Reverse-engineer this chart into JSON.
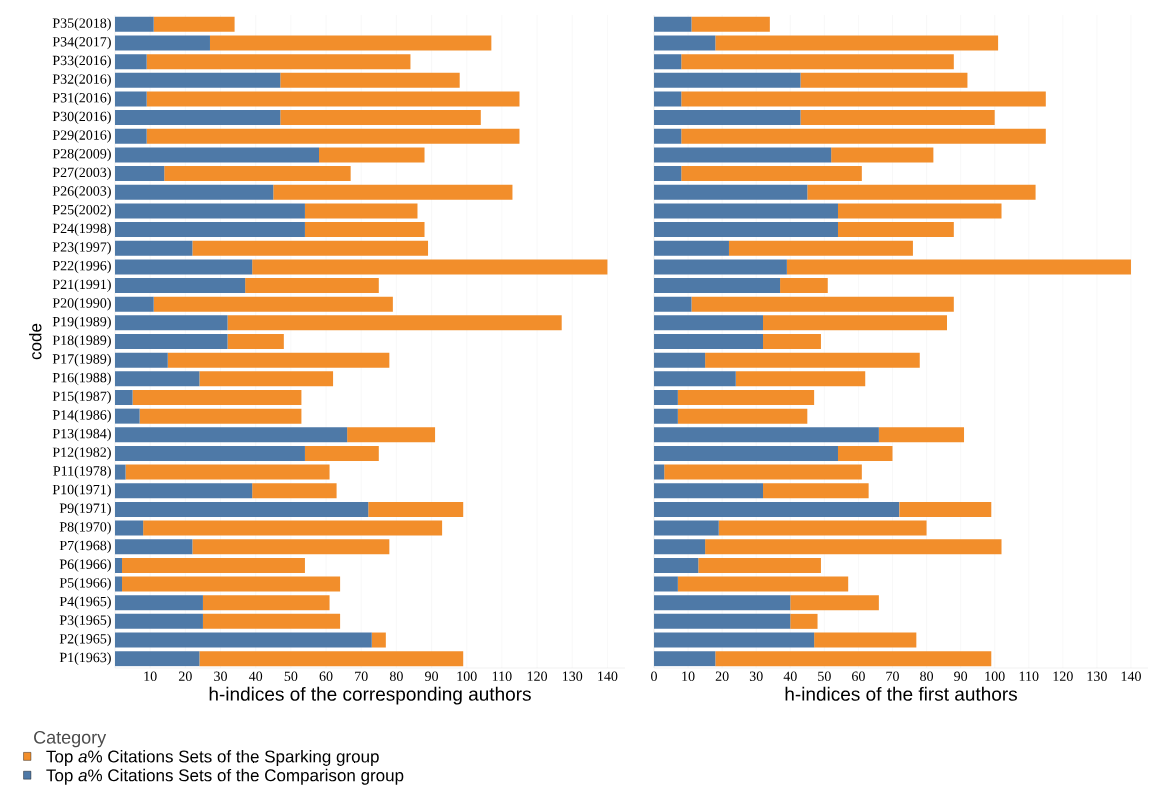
{
  "chart_data": [
    {
      "type": "bar",
      "orientation": "horizontal",
      "stacked": true,
      "categories": [
        "P35(2018)",
        "P34(2017)",
        "P33(2016)",
        "P32(2016)",
        "P31(2016)",
        "P30(2016)",
        "P29(2016)",
        "P28(2009)",
        "P27(2003)",
        "P26(2003)",
        "P25(2002)",
        "P24(1998)",
        "P23(1997)",
        "P22(1996)",
        "P21(1991)",
        "P20(1990)",
        "P19(1989)",
        "P18(1989)",
        "P17(1989)",
        "P16(1988)",
        "P15(1987)",
        "P14(1986)",
        "P13(1984)",
        "P12(1982)",
        "P11(1978)",
        "P10(1971)",
        "P9(1971)",
        "P8(1970)",
        "P7(1968)",
        "P6(1966)",
        "P5(1966)",
        "P4(1965)",
        "P3(1965)",
        "P2(1965)",
        "P1(1963)"
      ],
      "xlabel": "h-indices of the corresponding authors",
      "ylabel": "code",
      "legend_title": "Category",
      "legend": "bottom left",
      "grid": "x",
      "xlim": [
        0,
        145
      ],
      "xticks": [
        10,
        20,
        30,
        40,
        50,
        60,
        70,
        80,
        90,
        100,
        110,
        120,
        130,
        140
      ],
      "series": [
        {
          "name": "Top *a*% Citations Sets of the Comparison group",
          "color": "#4e79a7",
          "values": [
            11,
            27,
            9,
            47,
            9,
            47,
            9,
            58,
            14,
            45,
            54,
            54,
            22,
            39,
            37,
            11,
            32,
            32,
            15,
            24,
            5,
            7,
            66,
            54,
            3,
            39,
            72,
            8,
            22,
            2,
            2,
            25,
            25,
            73,
            24
          ]
        },
        {
          "name": "Top *a*% Citations Sets of the Sparking group",
          "color": "#f28e2b",
          "values": [
            23,
            80,
            75,
            51,
            106,
            57,
            106,
            30,
            53,
            68,
            32,
            34,
            67,
            101,
            38,
            68,
            95,
            16,
            63,
            38,
            48,
            46,
            25,
            21,
            58,
            24,
            27,
            85,
            56,
            52,
            62,
            36,
            39,
            4,
            75
          ]
        }
      ]
    },
    {
      "type": "bar",
      "orientation": "horizontal",
      "stacked": true,
      "xlabel": "h-indices of the first authors",
      "categories": [
        null,
        null,
        null,
        null,
        null,
        null,
        null,
        null,
        null,
        null,
        null,
        null,
        null,
        null,
        null,
        null,
        null,
        null,
        null,
        null,
        null,
        null,
        null,
        null,
        null,
        null,
        null,
        null,
        null,
        null,
        null,
        null,
        null,
        null,
        null
      ],
      "tick_labels": "x",
      "grid": "x",
      "xlim": [
        0,
        145
      ],
      "xticks": [
        0,
        10,
        20,
        30,
        40,
        50,
        60,
        70,
        80,
        90,
        100,
        110,
        120,
        130,
        140
      ],
      "series": [
        {
          "color": "#4e79a7",
          "values": [
            11,
            18,
            8,
            43,
            8,
            43,
            8,
            52,
            8,
            45,
            54,
            54,
            22,
            39,
            37,
            11,
            32,
            32,
            15,
            24,
            7,
            7,
            66,
            54,
            3,
            32,
            72,
            19,
            15,
            13,
            7,
            40,
            40,
            47,
            18
          ]
        },
        {
          "color": "#f28e2b",
          "values": [
            23,
            83,
            80,
            49,
            107,
            57,
            107,
            30,
            53,
            67,
            48,
            34,
            54,
            101,
            14,
            77,
            54,
            17,
            63,
            38,
            40,
            38,
            25,
            16,
            58,
            31,
            27,
            61,
            87,
            36,
            50,
            26,
            8,
            30,
            81
          ]
        }
      ]
    }
  ]
}
